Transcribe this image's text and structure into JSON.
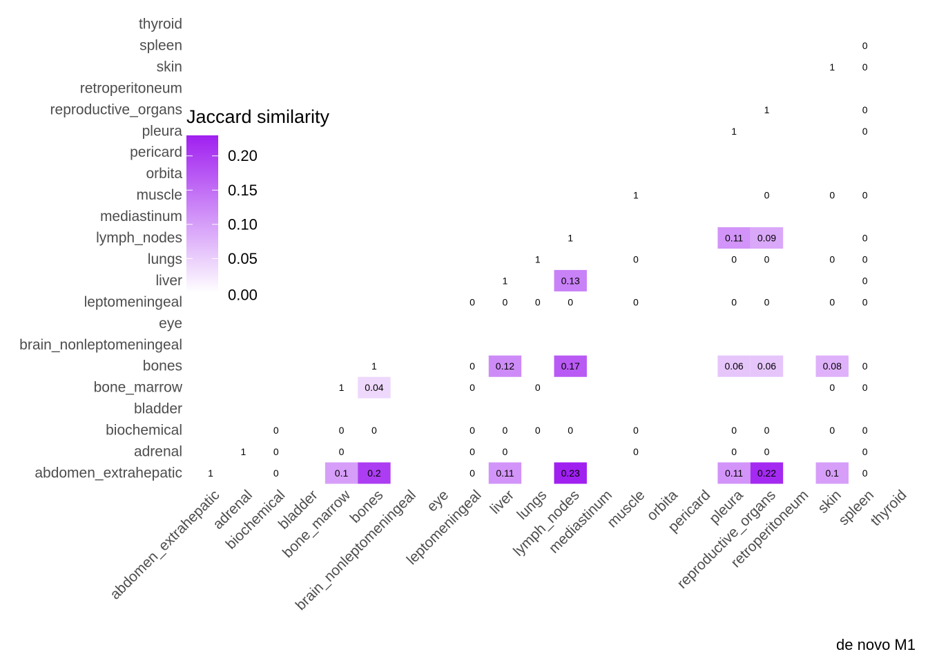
{
  "chart_data": {
    "type": "heatmap",
    "title": "",
    "caption": "de novo M1",
    "xlabel": "",
    "ylabel": "",
    "categories": [
      "abdomen_extrahepatic",
      "adrenal",
      "biochemical",
      "bladder",
      "bone_marrow",
      "bones",
      "brain_nonleptomeningeal",
      "eye",
      "leptomeningeal",
      "liver",
      "lungs",
      "lymph_nodes",
      "mediastinum",
      "muscle",
      "orbita",
      "pericard",
      "pleura",
      "reproductive_organs",
      "retroperitoneum",
      "skin",
      "spleen",
      "thyroid"
    ],
    "legend": {
      "title": "Jaccard similarity",
      "placement": "top-left inside plot",
      "ticks": [
        "0.00",
        "0.05",
        "0.10",
        "0.15",
        "0.20"
      ],
      "tick_values": [
        0,
        0.05,
        0.1,
        0.15,
        0.2
      ],
      "range": [
        0,
        0.23
      ],
      "low_color": "#ffffff",
      "high_color": "#a020f0"
    },
    "cells": [
      {
        "x": "abdomen_extrahepatic",
        "y": "abdomen_extrahepatic",
        "value": 1,
        "label": "1"
      },
      {
        "x": "biochemical",
        "y": "abdomen_extrahepatic",
        "value": 0,
        "label": "0"
      },
      {
        "x": "bone_marrow",
        "y": "abdomen_extrahepatic",
        "value": 0.1,
        "label": "0.1"
      },
      {
        "x": "bones",
        "y": "abdomen_extrahepatic",
        "value": 0.2,
        "label": "0.2"
      },
      {
        "x": "leptomeningeal",
        "y": "abdomen_extrahepatic",
        "value": 0,
        "label": "0"
      },
      {
        "x": "liver",
        "y": "abdomen_extrahepatic",
        "value": 0.11,
        "label": "0.11"
      },
      {
        "x": "lymph_nodes",
        "y": "abdomen_extrahepatic",
        "value": 0.23,
        "label": "0.23"
      },
      {
        "x": "pleura",
        "y": "abdomen_extrahepatic",
        "value": 0.11,
        "label": "0.11"
      },
      {
        "x": "reproductive_organs",
        "y": "abdomen_extrahepatic",
        "value": 0.22,
        "label": "0.22"
      },
      {
        "x": "skin",
        "y": "abdomen_extrahepatic",
        "value": 0.1,
        "label": "0.1"
      },
      {
        "x": "spleen",
        "y": "abdomen_extrahepatic",
        "value": 0,
        "label": "0"
      },
      {
        "x": "adrenal",
        "y": "adrenal",
        "value": 1,
        "label": "1"
      },
      {
        "x": "biochemical",
        "y": "adrenal",
        "value": 0,
        "label": "0"
      },
      {
        "x": "bone_marrow",
        "y": "adrenal",
        "value": 0,
        "label": "0"
      },
      {
        "x": "leptomeningeal",
        "y": "adrenal",
        "value": 0,
        "label": "0"
      },
      {
        "x": "liver",
        "y": "adrenal",
        "value": 0,
        "label": "0"
      },
      {
        "x": "muscle",
        "y": "adrenal",
        "value": 0,
        "label": "0"
      },
      {
        "x": "pleura",
        "y": "adrenal",
        "value": 0,
        "label": "0"
      },
      {
        "x": "reproductive_organs",
        "y": "adrenal",
        "value": 0,
        "label": "0"
      },
      {
        "x": "spleen",
        "y": "adrenal",
        "value": 0,
        "label": "0"
      },
      {
        "x": "biochemical",
        "y": "biochemical",
        "value": 0,
        "label": "0"
      },
      {
        "x": "bone_marrow",
        "y": "biochemical",
        "value": 0,
        "label": "0"
      },
      {
        "x": "bones",
        "y": "biochemical",
        "value": 0,
        "label": "0"
      },
      {
        "x": "leptomeningeal",
        "y": "biochemical",
        "value": 0,
        "label": "0"
      },
      {
        "x": "liver",
        "y": "biochemical",
        "value": 0,
        "label": "0"
      },
      {
        "x": "lungs",
        "y": "biochemical",
        "value": 0,
        "label": "0"
      },
      {
        "x": "lymph_nodes",
        "y": "biochemical",
        "value": 0,
        "label": "0"
      },
      {
        "x": "muscle",
        "y": "biochemical",
        "value": 0,
        "label": "0"
      },
      {
        "x": "pleura",
        "y": "biochemical",
        "value": 0,
        "label": "0"
      },
      {
        "x": "reproductive_organs",
        "y": "biochemical",
        "value": 0,
        "label": "0"
      },
      {
        "x": "skin",
        "y": "biochemical",
        "value": 0,
        "label": "0"
      },
      {
        "x": "spleen",
        "y": "biochemical",
        "value": 0,
        "label": "0"
      },
      {
        "x": "bone_marrow",
        "y": "bone_marrow",
        "value": 1,
        "label": "1"
      },
      {
        "x": "bones",
        "y": "bone_marrow",
        "value": 0.04,
        "label": "0.04"
      },
      {
        "x": "leptomeningeal",
        "y": "bone_marrow",
        "value": 0,
        "label": "0"
      },
      {
        "x": "lungs",
        "y": "bone_marrow",
        "value": 0,
        "label": "0"
      },
      {
        "x": "skin",
        "y": "bone_marrow",
        "value": 0,
        "label": "0"
      },
      {
        "x": "spleen",
        "y": "bone_marrow",
        "value": 0,
        "label": "0"
      },
      {
        "x": "bones",
        "y": "bones",
        "value": 1,
        "label": "1"
      },
      {
        "x": "leptomeningeal",
        "y": "bones",
        "value": 0,
        "label": "0"
      },
      {
        "x": "liver",
        "y": "bones",
        "value": 0.12,
        "label": "0.12"
      },
      {
        "x": "lymph_nodes",
        "y": "bones",
        "value": 0.17,
        "label": "0.17"
      },
      {
        "x": "pleura",
        "y": "bones",
        "value": 0.06,
        "label": "0.06"
      },
      {
        "x": "reproductive_organs",
        "y": "bones",
        "value": 0.06,
        "label": "0.06"
      },
      {
        "x": "skin",
        "y": "bones",
        "value": 0.08,
        "label": "0.08"
      },
      {
        "x": "spleen",
        "y": "bones",
        "value": 0,
        "label": "0"
      },
      {
        "x": "leptomeningeal",
        "y": "leptomeningeal",
        "value": 0,
        "label": "0"
      },
      {
        "x": "liver",
        "y": "leptomeningeal",
        "value": 0,
        "label": "0"
      },
      {
        "x": "lungs",
        "y": "leptomeningeal",
        "value": 0,
        "label": "0"
      },
      {
        "x": "lymph_nodes",
        "y": "leptomeningeal",
        "value": 0,
        "label": "0"
      },
      {
        "x": "muscle",
        "y": "leptomeningeal",
        "value": 0,
        "label": "0"
      },
      {
        "x": "pleura",
        "y": "leptomeningeal",
        "value": 0,
        "label": "0"
      },
      {
        "x": "reproductive_organs",
        "y": "leptomeningeal",
        "value": 0,
        "label": "0"
      },
      {
        "x": "skin",
        "y": "leptomeningeal",
        "value": 0,
        "label": "0"
      },
      {
        "x": "spleen",
        "y": "leptomeningeal",
        "value": 0,
        "label": "0"
      },
      {
        "x": "liver",
        "y": "liver",
        "value": 1,
        "label": "1"
      },
      {
        "x": "lymph_nodes",
        "y": "liver",
        "value": 0.13,
        "label": "0.13"
      },
      {
        "x": "spleen",
        "y": "liver",
        "value": 0,
        "label": "0"
      },
      {
        "x": "lungs",
        "y": "lungs",
        "value": 1,
        "label": "1"
      },
      {
        "x": "muscle",
        "y": "lungs",
        "value": 0,
        "label": "0"
      },
      {
        "x": "pleura",
        "y": "lungs",
        "value": 0,
        "label": "0"
      },
      {
        "x": "reproductive_organs",
        "y": "lungs",
        "value": 0,
        "label": "0"
      },
      {
        "x": "skin",
        "y": "lungs",
        "value": 0,
        "label": "0"
      },
      {
        "x": "spleen",
        "y": "lungs",
        "value": 0,
        "label": "0"
      },
      {
        "x": "lymph_nodes",
        "y": "lymph_nodes",
        "value": 1,
        "label": "1"
      },
      {
        "x": "pleura",
        "y": "lymph_nodes",
        "value": 0.11,
        "label": "0.11"
      },
      {
        "x": "reproductive_organs",
        "y": "lymph_nodes",
        "value": 0.09,
        "label": "0.09"
      },
      {
        "x": "spleen",
        "y": "lymph_nodes",
        "value": 0,
        "label": "0"
      },
      {
        "x": "muscle",
        "y": "muscle",
        "value": 1,
        "label": "1"
      },
      {
        "x": "reproductive_organs",
        "y": "muscle",
        "value": 0,
        "label": "0"
      },
      {
        "x": "skin",
        "y": "muscle",
        "value": 0,
        "label": "0"
      },
      {
        "x": "spleen",
        "y": "muscle",
        "value": 0,
        "label": "0"
      },
      {
        "x": "pleura",
        "y": "pleura",
        "value": 1,
        "label": "1"
      },
      {
        "x": "spleen",
        "y": "pleura",
        "value": 0,
        "label": "0"
      },
      {
        "x": "reproductive_organs",
        "y": "reproductive_organs",
        "value": 1,
        "label": "1"
      },
      {
        "x": "spleen",
        "y": "reproductive_organs",
        "value": 0,
        "label": "0"
      },
      {
        "x": "skin",
        "y": "skin",
        "value": 1,
        "label": "1"
      },
      {
        "x": "spleen",
        "y": "skin",
        "value": 0,
        "label": "0"
      },
      {
        "x": "spleen",
        "y": "spleen",
        "value": 0,
        "label": "0"
      }
    ]
  }
}
